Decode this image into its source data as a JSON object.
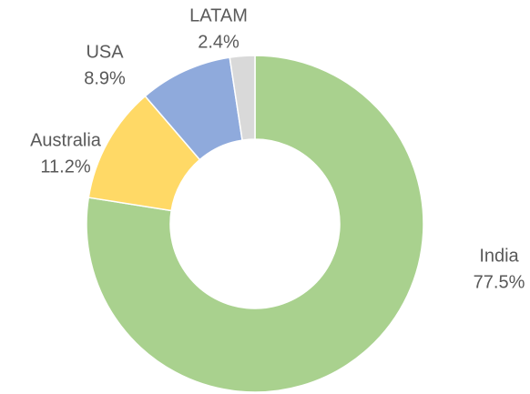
{
  "chart_data": {
    "type": "donut",
    "categories": [
      "India",
      "Australia",
      "USA",
      "LATAM"
    ],
    "values": [
      77.5,
      11.2,
      8.9,
      2.4
    ],
    "value_labels": [
      "77.5%",
      "11.2%",
      "8.9%",
      "2.4%"
    ],
    "colors": [
      "#a9d18e",
      "#ffd966",
      "#8faadc",
      "#d9d9d9"
    ]
  }
}
